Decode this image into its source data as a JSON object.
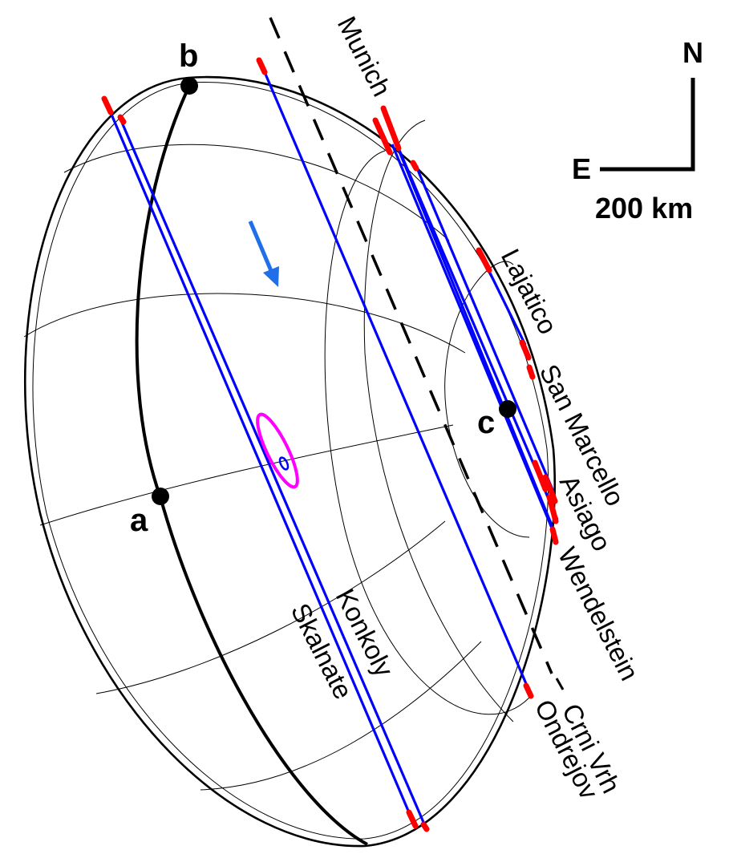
{
  "colors": {
    "chord": "#0000ff",
    "timing_error": "#ff0000",
    "limb": "#000000",
    "ellipse": "#ff00ff",
    "arrow": "#1e6fe8"
  },
  "points": {
    "a": "a",
    "b": "b",
    "c": "c"
  },
  "stations": {
    "munich": "Munich",
    "lajatico": "Lajatico",
    "san_marcello": "San Marcello",
    "asiago": "Asiago",
    "wendelstein": "Wendelstein",
    "crni_vrh": "Crni Vrh",
    "ondrejov": "Ondrejov",
    "konkoly": "Konkoly",
    "skalnate": "Skalnate"
  },
  "compass": {
    "north": "N",
    "east": "E",
    "scale_label": "200 km"
  }
}
